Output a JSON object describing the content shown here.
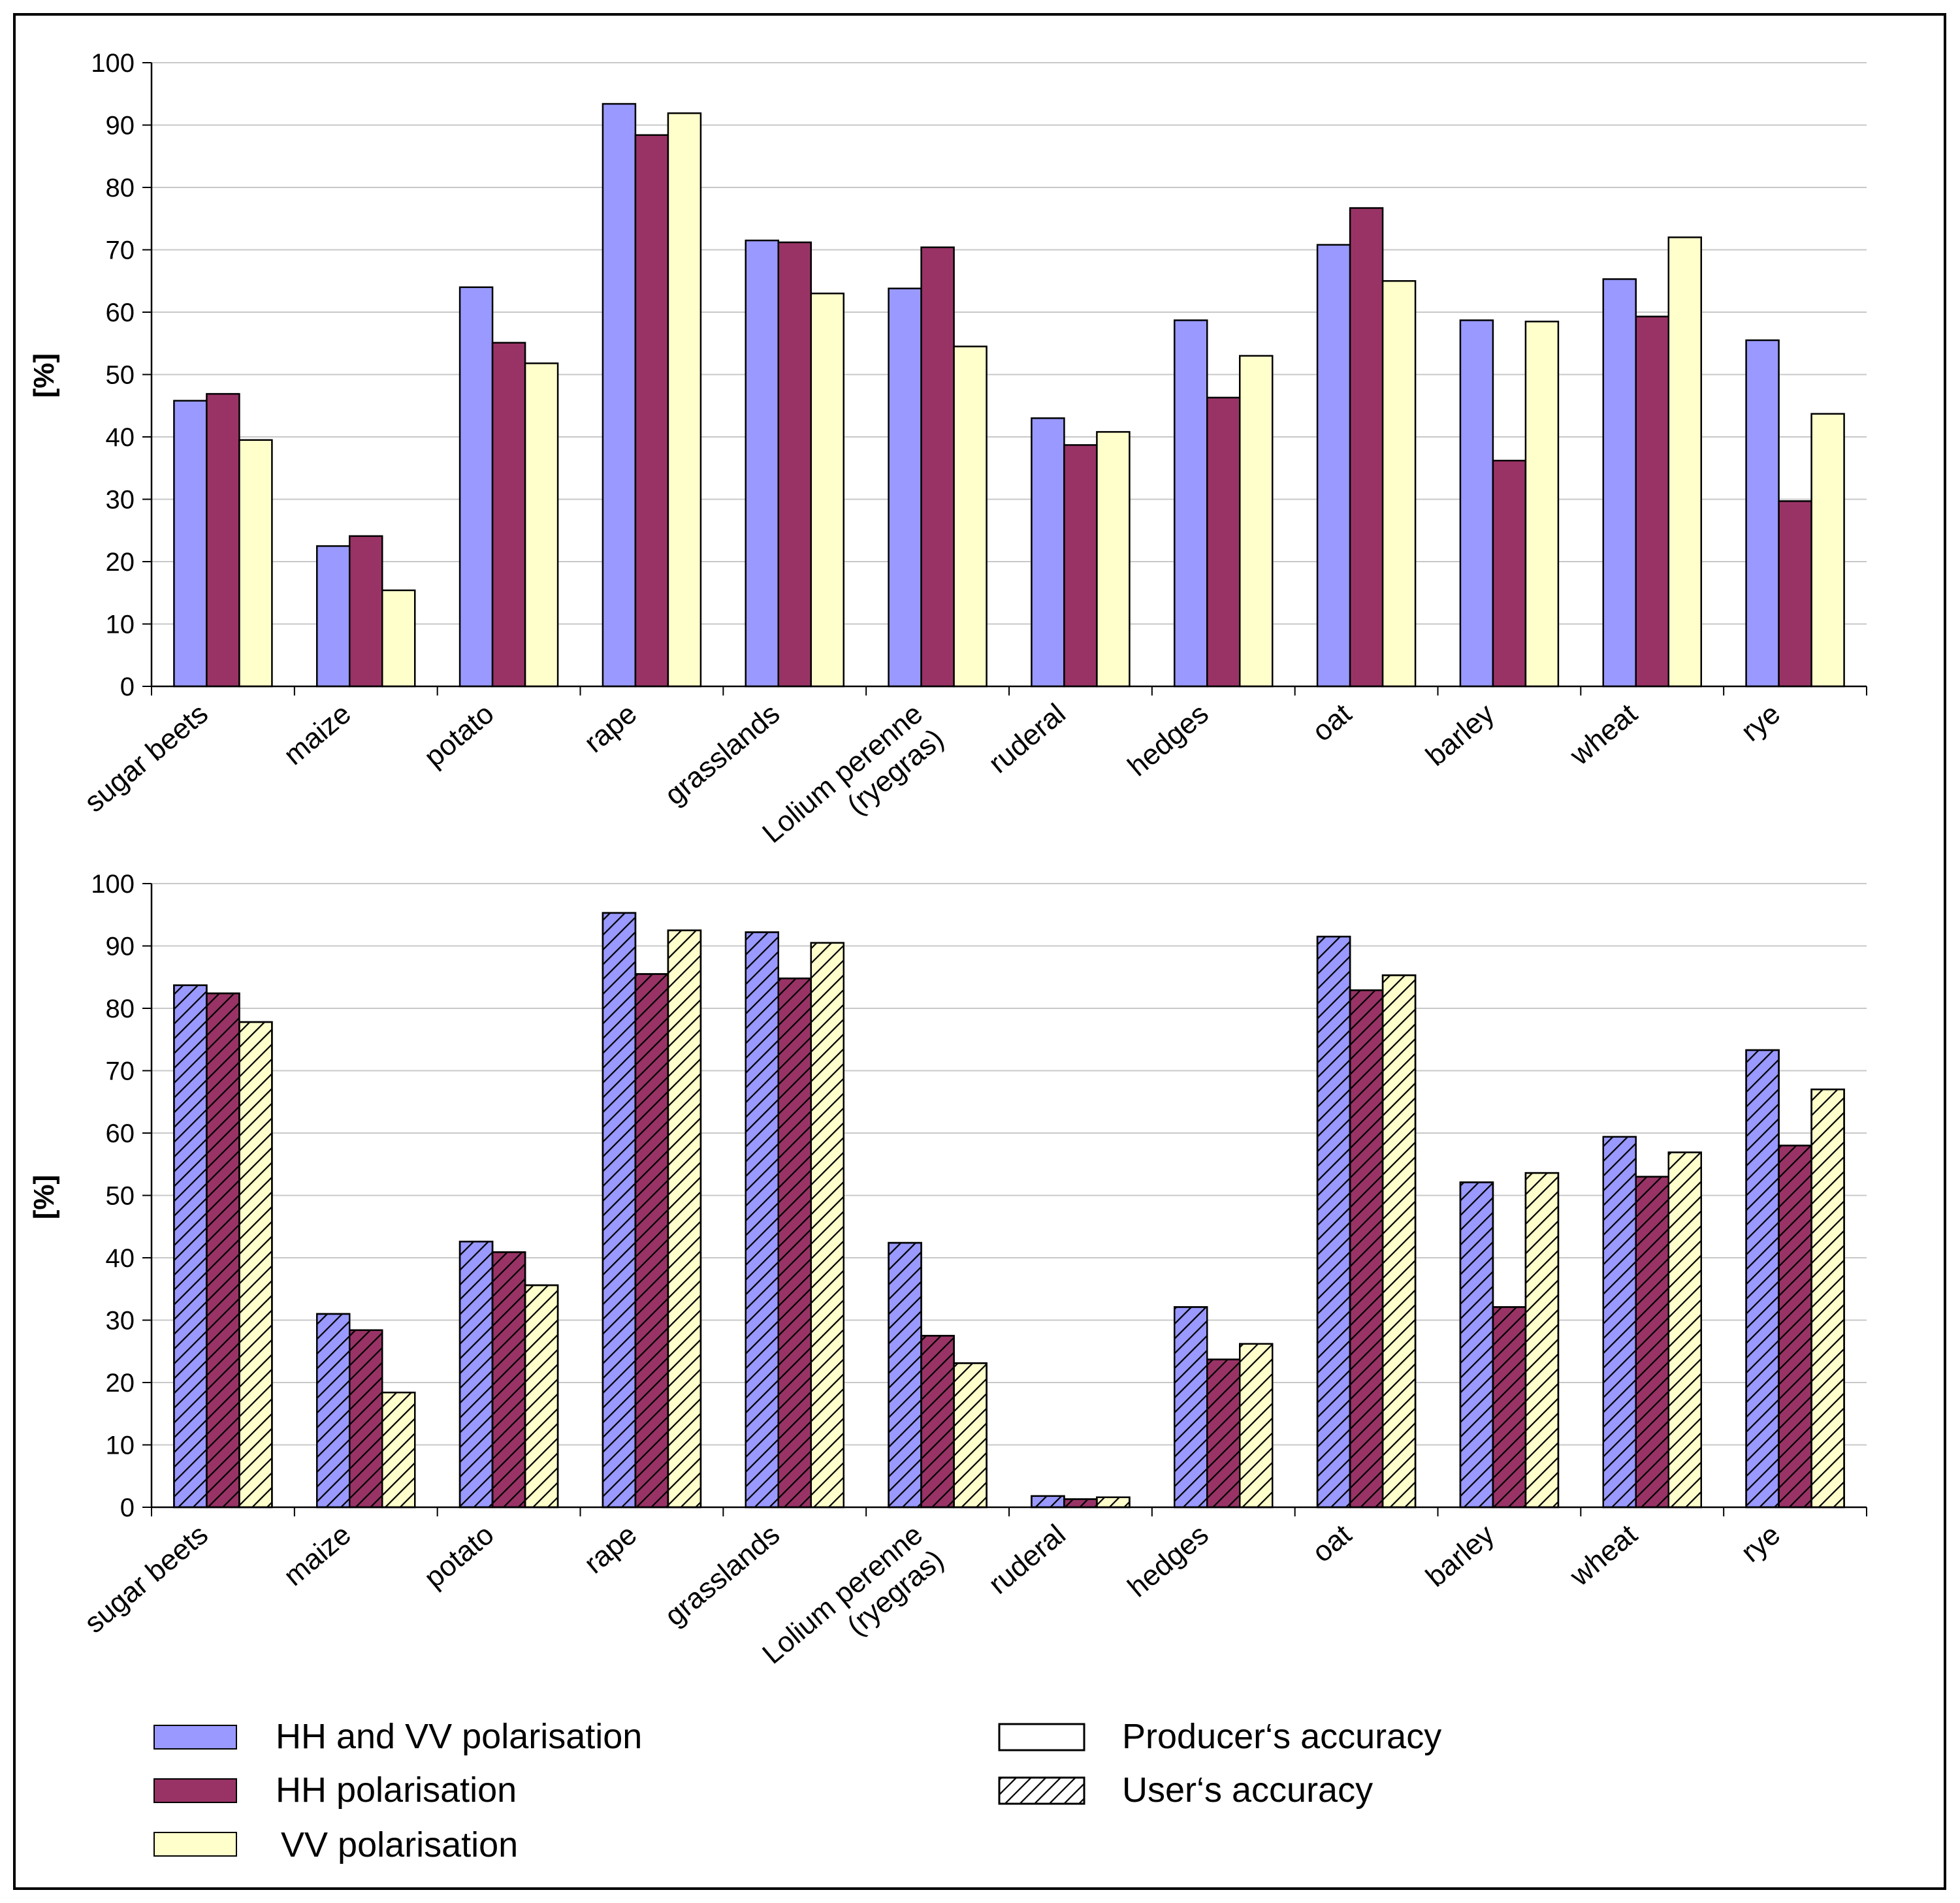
{
  "chart_data": [
    {
      "type": "bar",
      "panel": "top",
      "ylabel": "[%]",
      "ylim": [
        0,
        100
      ],
      "yticks": [
        "0",
        "10",
        "20",
        "30",
        "40",
        "50",
        "60",
        "70",
        "80",
        "90",
        "100"
      ],
      "grid": true,
      "categories": [
        [
          "sugar beets"
        ],
        [
          "maize"
        ],
        [
          "potato"
        ],
        [
          "rape"
        ],
        [
          "grasslands"
        ],
        [
          "Lolium perenne",
          "(ryegras)"
        ],
        [
          "ruderal"
        ],
        [
          "hedges"
        ],
        [
          "oat"
        ],
        [
          "barley"
        ],
        [
          "wheat"
        ],
        [
          "rye"
        ]
      ],
      "series": [
        {
          "name": "HH and VV polarisation",
          "color": "#9999ff",
          "pattern": "solid",
          "values": [
            45.8,
            22.5,
            64.0,
            93.4,
            71.5,
            63.8,
            43.0,
            58.7,
            70.8,
            58.7,
            65.3,
            55.5
          ]
        },
        {
          "name": "HH polarisation",
          "color": "#993366",
          "pattern": "solid",
          "values": [
            46.9,
            24.1,
            55.1,
            88.4,
            71.2,
            70.4,
            38.7,
            46.3,
            76.7,
            36.2,
            59.3,
            29.7
          ]
        },
        {
          "name": "VV polarisation",
          "color": "#ffffcc",
          "pattern": "solid",
          "values": [
            39.5,
            15.4,
            51.8,
            91.9,
            63.0,
            54.5,
            40.8,
            53.0,
            65.0,
            58.5,
            72.0,
            43.7
          ]
        }
      ]
    },
    {
      "type": "bar",
      "panel": "bottom",
      "ylabel": "[%]",
      "ylim": [
        0,
        100
      ],
      "yticks": [
        "0",
        "10",
        "20",
        "30",
        "40",
        "50",
        "60",
        "70",
        "80",
        "90",
        "100"
      ],
      "grid": true,
      "categories": [
        [
          "sugar beets"
        ],
        [
          "maize"
        ],
        [
          "potato"
        ],
        [
          "rape"
        ],
        [
          "grasslands"
        ],
        [
          "Lolium perenne",
          "(ryegras)"
        ],
        [
          "ruderal"
        ],
        [
          "hedges"
        ],
        [
          "oat"
        ],
        [
          "barley"
        ],
        [
          "wheat"
        ],
        [
          "rye"
        ]
      ],
      "series": [
        {
          "name": "HH and VV polarisation",
          "color": "#9999ff",
          "pattern": "hatched",
          "values": [
            83.7,
            31.0,
            42.6,
            95.3,
            92.2,
            42.4,
            1.8,
            32.1,
            91.5,
            52.1,
            59.4,
            73.3
          ]
        },
        {
          "name": "HH polarisation",
          "color": "#993366",
          "pattern": "hatched",
          "values": [
            82.4,
            28.4,
            40.9,
            85.5,
            84.8,
            27.5,
            1.3,
            23.7,
            82.9,
            32.1,
            53.0,
            58.0
          ]
        },
        {
          "name": "VV polarisation",
          "color": "#ffffcc",
          "pattern": "hatched",
          "values": [
            77.8,
            18.4,
            35.6,
            92.5,
            90.5,
            23.1,
            1.6,
            26.2,
            85.3,
            53.6,
            56.9,
            67.0
          ]
        }
      ]
    }
  ],
  "legend": {
    "series": [
      {
        "label": "HH and VV polarisation",
        "color": "#9999ff"
      },
      {
        "label": "HH polarisation",
        "color": "#993366"
      },
      {
        "label": "VV polarisation",
        "color": "#ffffcc"
      }
    ],
    "patterns": [
      {
        "label": "Producer‘s accuracy",
        "pattern": "solid"
      },
      {
        "label": "User‘s accuracy",
        "pattern": "hatched"
      }
    ]
  }
}
